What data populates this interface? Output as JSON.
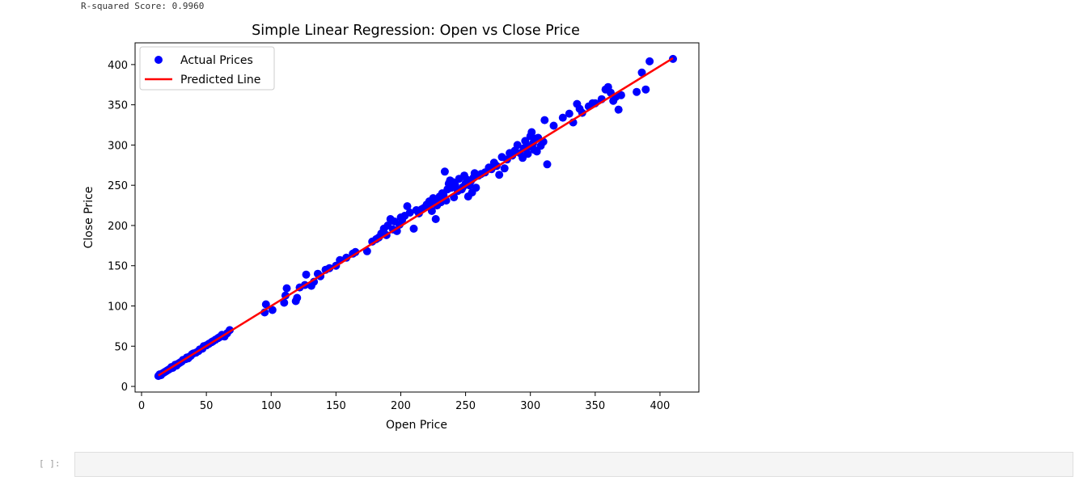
{
  "output": {
    "text": "R-squared Score: 0.9960"
  },
  "cell": {
    "prompt": "[ ]:"
  },
  "colors": {
    "points": "#0000ff",
    "line": "#ff0000"
  },
  "chart_data": {
    "type": "scatter",
    "title": "Simple Linear Regression: Open vs Close Price",
    "xlabel": "Open Price",
    "ylabel": "Close Price",
    "xlim": [
      -5,
      430
    ],
    "ylim": [
      -7,
      427
    ],
    "xticks": [
      0,
      50,
      100,
      150,
      200,
      250,
      300,
      350,
      400
    ],
    "yticks": [
      0,
      50,
      100,
      150,
      200,
      250,
      300,
      350,
      400
    ],
    "grid": false,
    "legend_position": "top-left",
    "series": [
      {
        "name": "Actual Prices",
        "kind": "scatter",
        "x": [
          13,
          14,
          15,
          16,
          17,
          18,
          19,
          20,
          21,
          22,
          23,
          24,
          25,
          26,
          27,
          28,
          29,
          30,
          31,
          32,
          34,
          35,
          36,
          37,
          38,
          39,
          40,
          42,
          44,
          45,
          47,
          48,
          50,
          52,
          54,
          55,
          57,
          59,
          60,
          62,
          64,
          66,
          68,
          95,
          96,
          101,
          110,
          111,
          112,
          119,
          120,
          122,
          126,
          127,
          131,
          133,
          136,
          138,
          142,
          145,
          150,
          153,
          158,
          163,
          165,
          174,
          178,
          181,
          183,
          185,
          187,
          189,
          190,
          192,
          194,
          195,
          197,
          199,
          200,
          201,
          203,
          205,
          207,
          210,
          212,
          214,
          216,
          218,
          220,
          222,
          223,
          224,
          225,
          226,
          227,
          228,
          230,
          231,
          232,
          233,
          234,
          235,
          236,
          237,
          238,
          239,
          240,
          241,
          242,
          244,
          245,
          247,
          248,
          249,
          250,
          251,
          252,
          253,
          254,
          255,
          256,
          257,
          258,
          260,
          262,
          265,
          268,
          270,
          272,
          274,
          276,
          278,
          280,
          282,
          284,
          286,
          288,
          290,
          292,
          294,
          295,
          296,
          298,
          299,
          300,
          301,
          302,
          303,
          304,
          305,
          306,
          308,
          310,
          311,
          313,
          318,
          325,
          330,
          333,
          336,
          338,
          340,
          345,
          348,
          350,
          355,
          358,
          360,
          362,
          364,
          366,
          368,
          370,
          382,
          386,
          389,
          392,
          410
        ],
        "y": [
          13,
          15,
          14,
          16,
          17,
          18,
          19,
          20,
          21,
          22,
          24,
          23,
          25,
          27,
          26,
          28,
          29,
          30,
          31,
          33,
          34,
          36,
          35,
          37,
          38,
          40,
          41,
          42,
          44,
          46,
          47,
          50,
          51,
          53,
          55,
          56,
          58,
          60,
          61,
          64,
          62,
          66,
          70,
          92,
          102,
          95,
          104,
          113,
          122,
          106,
          110,
          123,
          126,
          139,
          125,
          130,
          140,
          137,
          145,
          147,
          150,
          157,
          160,
          165,
          167,
          168,
          180,
          183,
          185,
          190,
          196,
          188,
          200,
          208,
          195,
          205,
          193,
          201,
          210,
          207,
          212,
          224,
          216,
          196,
          219,
          215,
          220,
          222,
          226,
          230,
          227,
          218,
          234,
          232,
          208,
          225,
          236,
          229,
          240,
          238,
          267,
          231,
          245,
          252,
          256,
          247,
          254,
          235,
          250,
          243,
          258,
          245,
          248,
          262,
          252,
          257,
          236,
          250,
          255,
          241,
          259,
          265,
          247,
          262,
          264,
          266,
          272,
          270,
          278,
          274,
          263,
          285,
          271,
          282,
          290,
          287,
          293,
          300,
          290,
          284,
          296,
          305,
          289,
          298,
          311,
          316,
          302,
          294,
          308,
          292,
          309,
          299,
          304,
          331,
          276,
          324,
          334,
          339,
          328,
          351,
          345,
          340,
          348,
          352,
          352,
          357,
          369,
          372,
          365,
          355,
          360,
          344,
          362,
          366,
          390,
          369,
          404,
          407
        ]
      },
      {
        "name": "Predicted Line",
        "kind": "line",
        "x": [
          13,
          410
        ],
        "y": [
          13.5,
          408
        ]
      }
    ]
  }
}
